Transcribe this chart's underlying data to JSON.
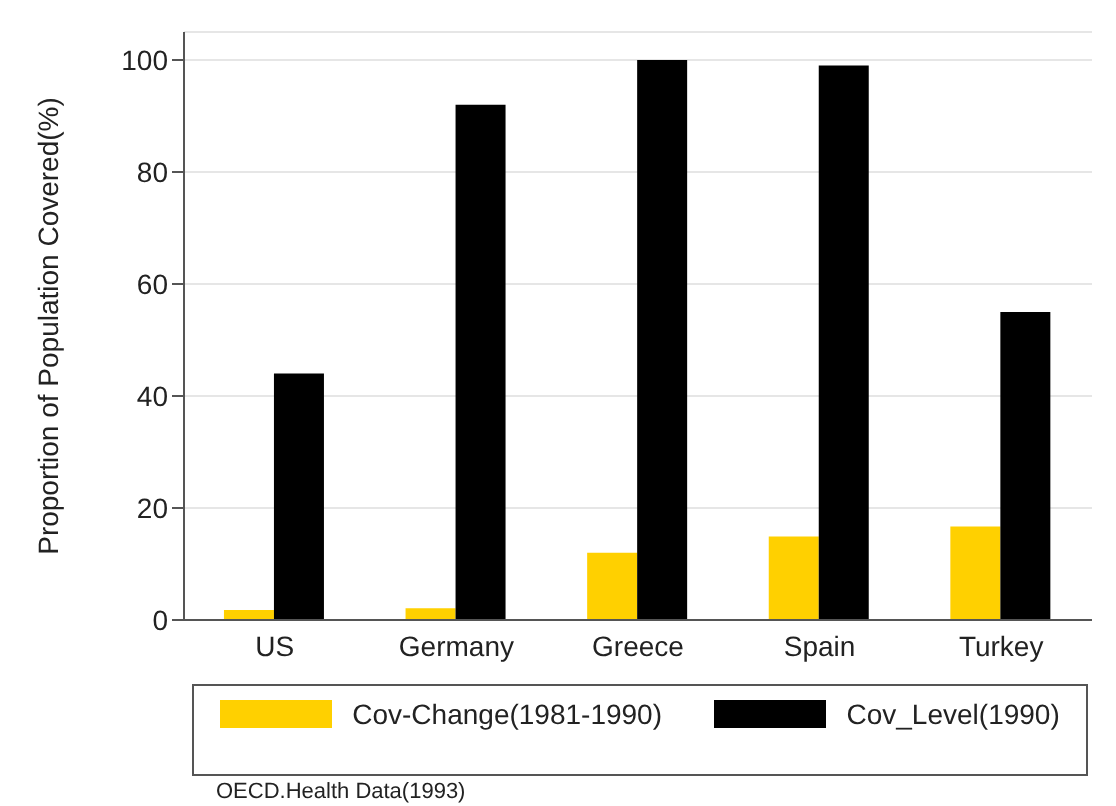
{
  "chart_data": {
    "type": "bar",
    "ylabel": "Proportion of Population Covered(%)",
    "categories": [
      "US",
      "Germany",
      "Greece",
      "Spain",
      "Turkey"
    ],
    "series": [
      {
        "name": "Cov-Change(1981-1990)",
        "color": "#ffd000",
        "values": [
          1.8,
          2.1,
          12,
          14.9,
          16.7
        ]
      },
      {
        "name": "Cov_Level(1990)",
        "color": "#000000",
        "values": [
          44,
          92,
          100,
          99,
          55
        ]
      }
    ],
    "ylim": [
      0,
      105
    ],
    "yticks": [
      0,
      20,
      40,
      60,
      80,
      100
    ],
    "grid": "y",
    "legend": "bottom",
    "annotations": [
      "OECD.Health Data(1993)"
    ]
  }
}
